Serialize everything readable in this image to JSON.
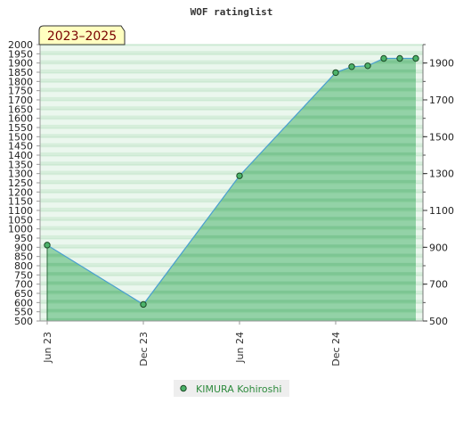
{
  "chart_data": {
    "type": "area",
    "title": "WOF ratinglist",
    "period_badge": "2023–2025",
    "xlabel": "",
    "ylabel": "",
    "x_ticks": [
      "Jun 23",
      "Dec 23",
      "Jun 24",
      "Dec 24"
    ],
    "y_left_ticks": [
      "2000",
      "1950",
      "1900",
      "1850",
      "1800",
      "1750",
      "1700",
      "1650",
      "1600",
      "1550",
      "1500",
      "1450",
      "1400",
      "1350",
      "1300",
      "1250",
      "1200",
      "1150",
      "1100",
      "1050",
      "1000",
      "950",
      "900",
      "850",
      "800",
      "750",
      "700",
      "650",
      "600",
      "550",
      "500"
    ],
    "y_right_ticks": [
      "1900",
      "1700",
      "1500",
      "1300",
      "1100",
      "900",
      "700",
      "500"
    ],
    "ylim": [
      500,
      2000
    ],
    "grid": true,
    "legend_position": "bottom-center",
    "colors": {
      "fill": "#5dbb7a",
      "line": "#4a9fd0",
      "marker": "#4cb36a",
      "legend_text": "#2e8b3d"
    },
    "series": [
      {
        "name": "KIMURA Kohiroshi",
        "points": [
          {
            "x": "2023-06",
            "y": 912
          },
          {
            "x": "2023-12",
            "y": 590
          },
          {
            "x": "2024-06",
            "y": 1288
          },
          {
            "x": "2024-12",
            "y": 1848
          },
          {
            "x": "2025-01",
            "y": 1880
          },
          {
            "x": "2025-02",
            "y": 1885
          },
          {
            "x": "2025-03",
            "y": 1925
          },
          {
            "x": "2025-04",
            "y": 1925
          },
          {
            "x": "2025-05",
            "y": 1925
          }
        ]
      }
    ]
  }
}
